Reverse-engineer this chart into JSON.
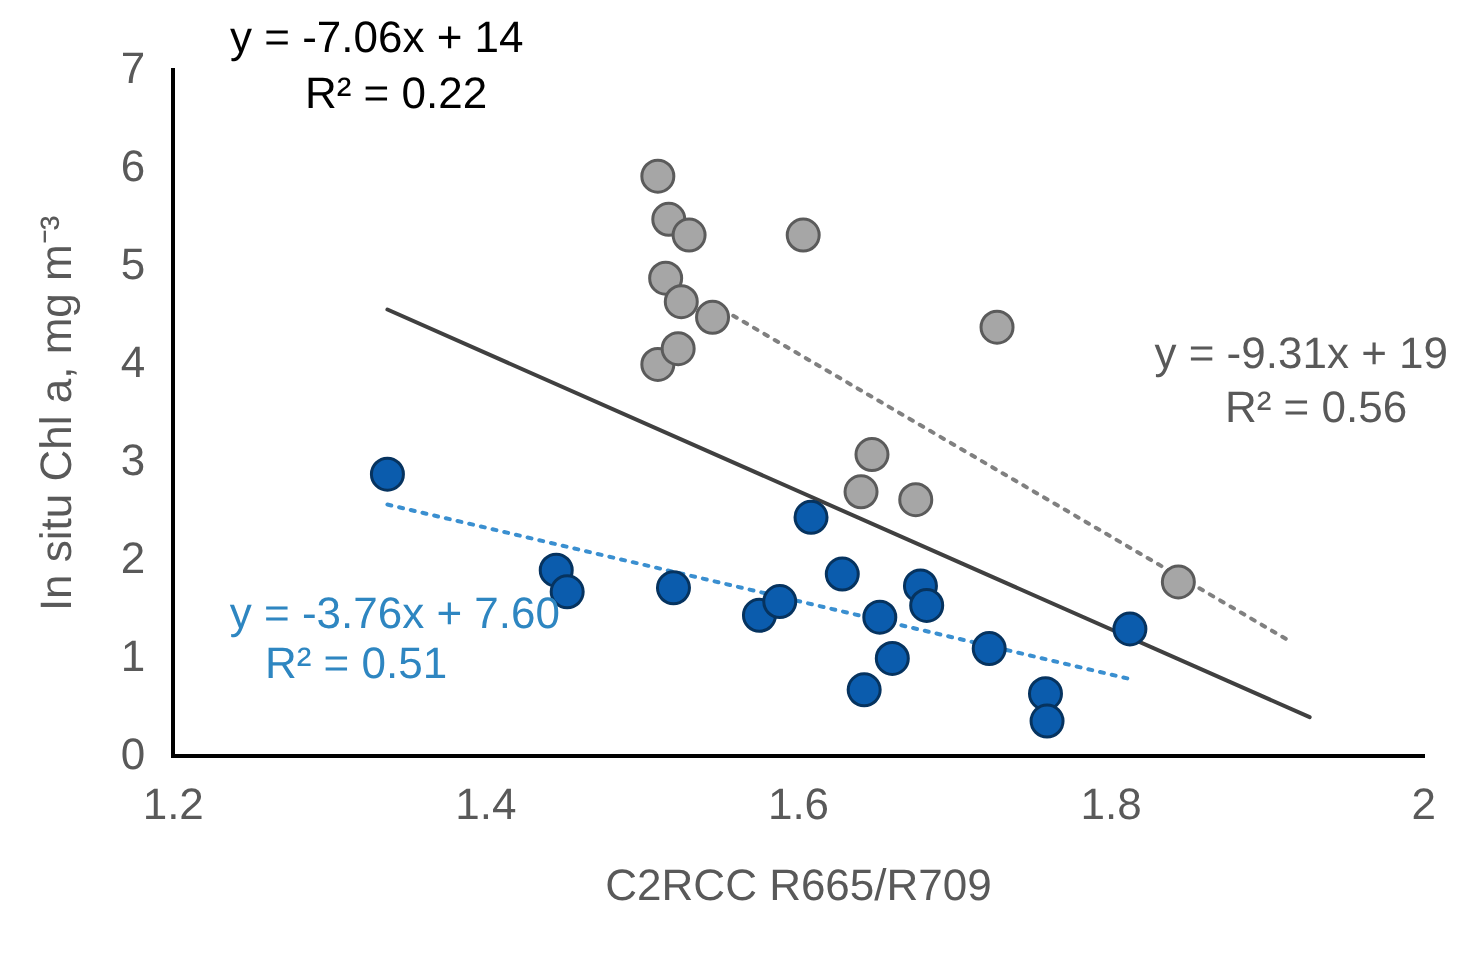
{
  "chart_data": {
    "type": "scatter",
    "xlabel": "C2RCC R665/R709",
    "ylabel": "In situ Chl a, mg m⁻³",
    "xlim": [
      1.2,
      2
    ],
    "xticks": [
      1.2,
      1.4,
      1.6,
      1.8,
      2
    ],
    "ylim": [
      0,
      7
    ],
    "yticks": [
      0,
      1,
      2,
      3,
      4,
      5,
      6,
      7
    ],
    "grid": false,
    "legend": false,
    "series": [
      {
        "marker": "circle",
        "color": "#a6a6a6",
        "x": [
          1.51,
          1.517,
          1.53,
          1.515,
          1.525,
          1.545,
          1.51,
          1.523,
          1.603,
          1.727,
          1.647,
          1.64,
          1.675,
          1.843
        ],
        "values": [
          5.92,
          5.48,
          5.32,
          4.88,
          4.64,
          4.48,
          4.0,
          4.16,
          5.32,
          4.38,
          3.08,
          2.7,
          2.62,
          1.78
        ]
      },
      {
        "marker": "circle",
        "color": "#0b5cad",
        "x": [
          1.337,
          1.445,
          1.452,
          1.52,
          1.575,
          1.588,
          1.608,
          1.628,
          1.652,
          1.66,
          1.642,
          1.678,
          1.682,
          1.722,
          1.758,
          1.759,
          1.812
        ],
        "values": [
          2.88,
          1.9,
          1.68,
          1.72,
          1.44,
          1.58,
          2.44,
          1.86,
          1.42,
          1.0,
          0.68,
          1.74,
          1.54,
          1.1,
          0.64,
          0.36,
          1.3
        ]
      },
      {
        "type": "line",
        "color": "#404040",
        "line_style": "solid",
        "x": [
          1.337,
          1.927
        ],
        "values": [
          4.56,
          0.4
        ]
      },
      {
        "type": "line",
        "color": "#808080",
        "line_style": "dotted",
        "x": [
          1.545,
          1.916
        ],
        "values": [
          4.62,
          1.16
        ]
      },
      {
        "type": "line",
        "color": "#3a8fd0",
        "line_style": "dotted",
        "x": [
          1.337,
          1.812
        ],
        "values": [
          2.57,
          0.79
        ]
      }
    ],
    "annotations": [
      "y = -7.06x + 14",
      "R² = 0.22",
      "y = -9.31x + 19",
      "R² = 0.56",
      "y = -3.76x + 7.60",
      "R² = 0.51"
    ]
  }
}
